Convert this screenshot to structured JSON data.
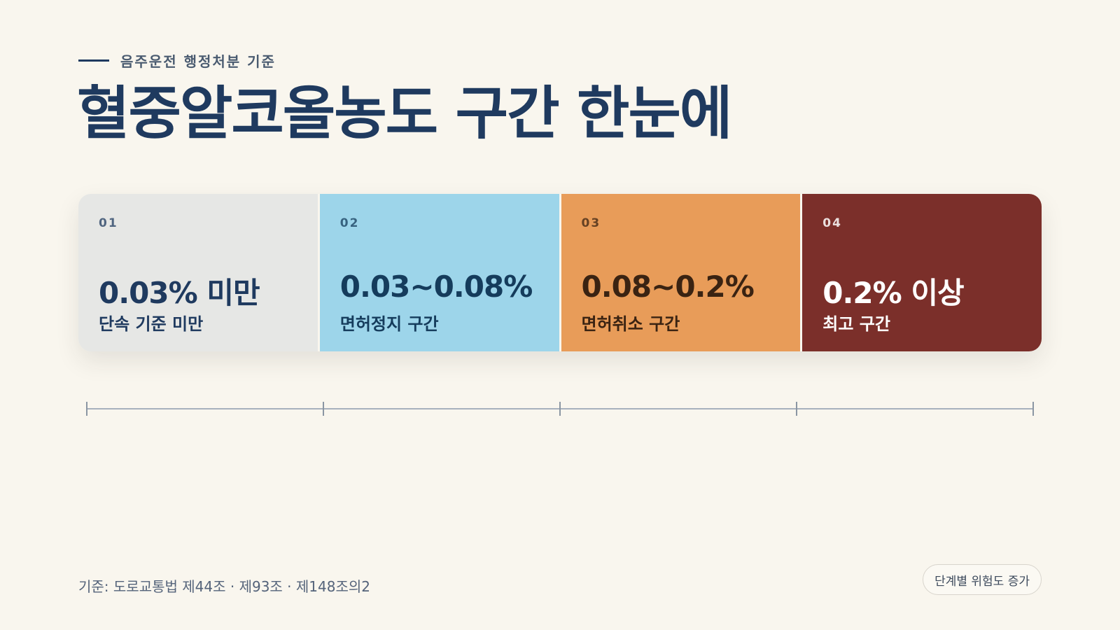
{
  "header": {
    "eyebrow": "음주운전 행정처분 기준",
    "title": "혈중알코올농도 구간 한눈에"
  },
  "segments": [
    {
      "num": "01",
      "range": "0.03% 미만",
      "desc": "단속 기준 미만",
      "color": "#e6e7e5"
    },
    {
      "num": "02",
      "range": "0.03~0.08%",
      "desc": "면허정지 구간",
      "color": "#9dd5ea"
    },
    {
      "num": "03",
      "range": "0.08~0.2%",
      "desc": "면허취소 구간",
      "color": "#e89c59"
    },
    {
      "num": "04",
      "range": "0.2% 이상",
      "desc": "최고 구간",
      "color": "#7b2f2a"
    }
  ],
  "footer": {
    "source": "기준: 도로교통법 제44조 · 제93조 · 제148조의2",
    "badge": "단계별 위험도 증가"
  }
}
